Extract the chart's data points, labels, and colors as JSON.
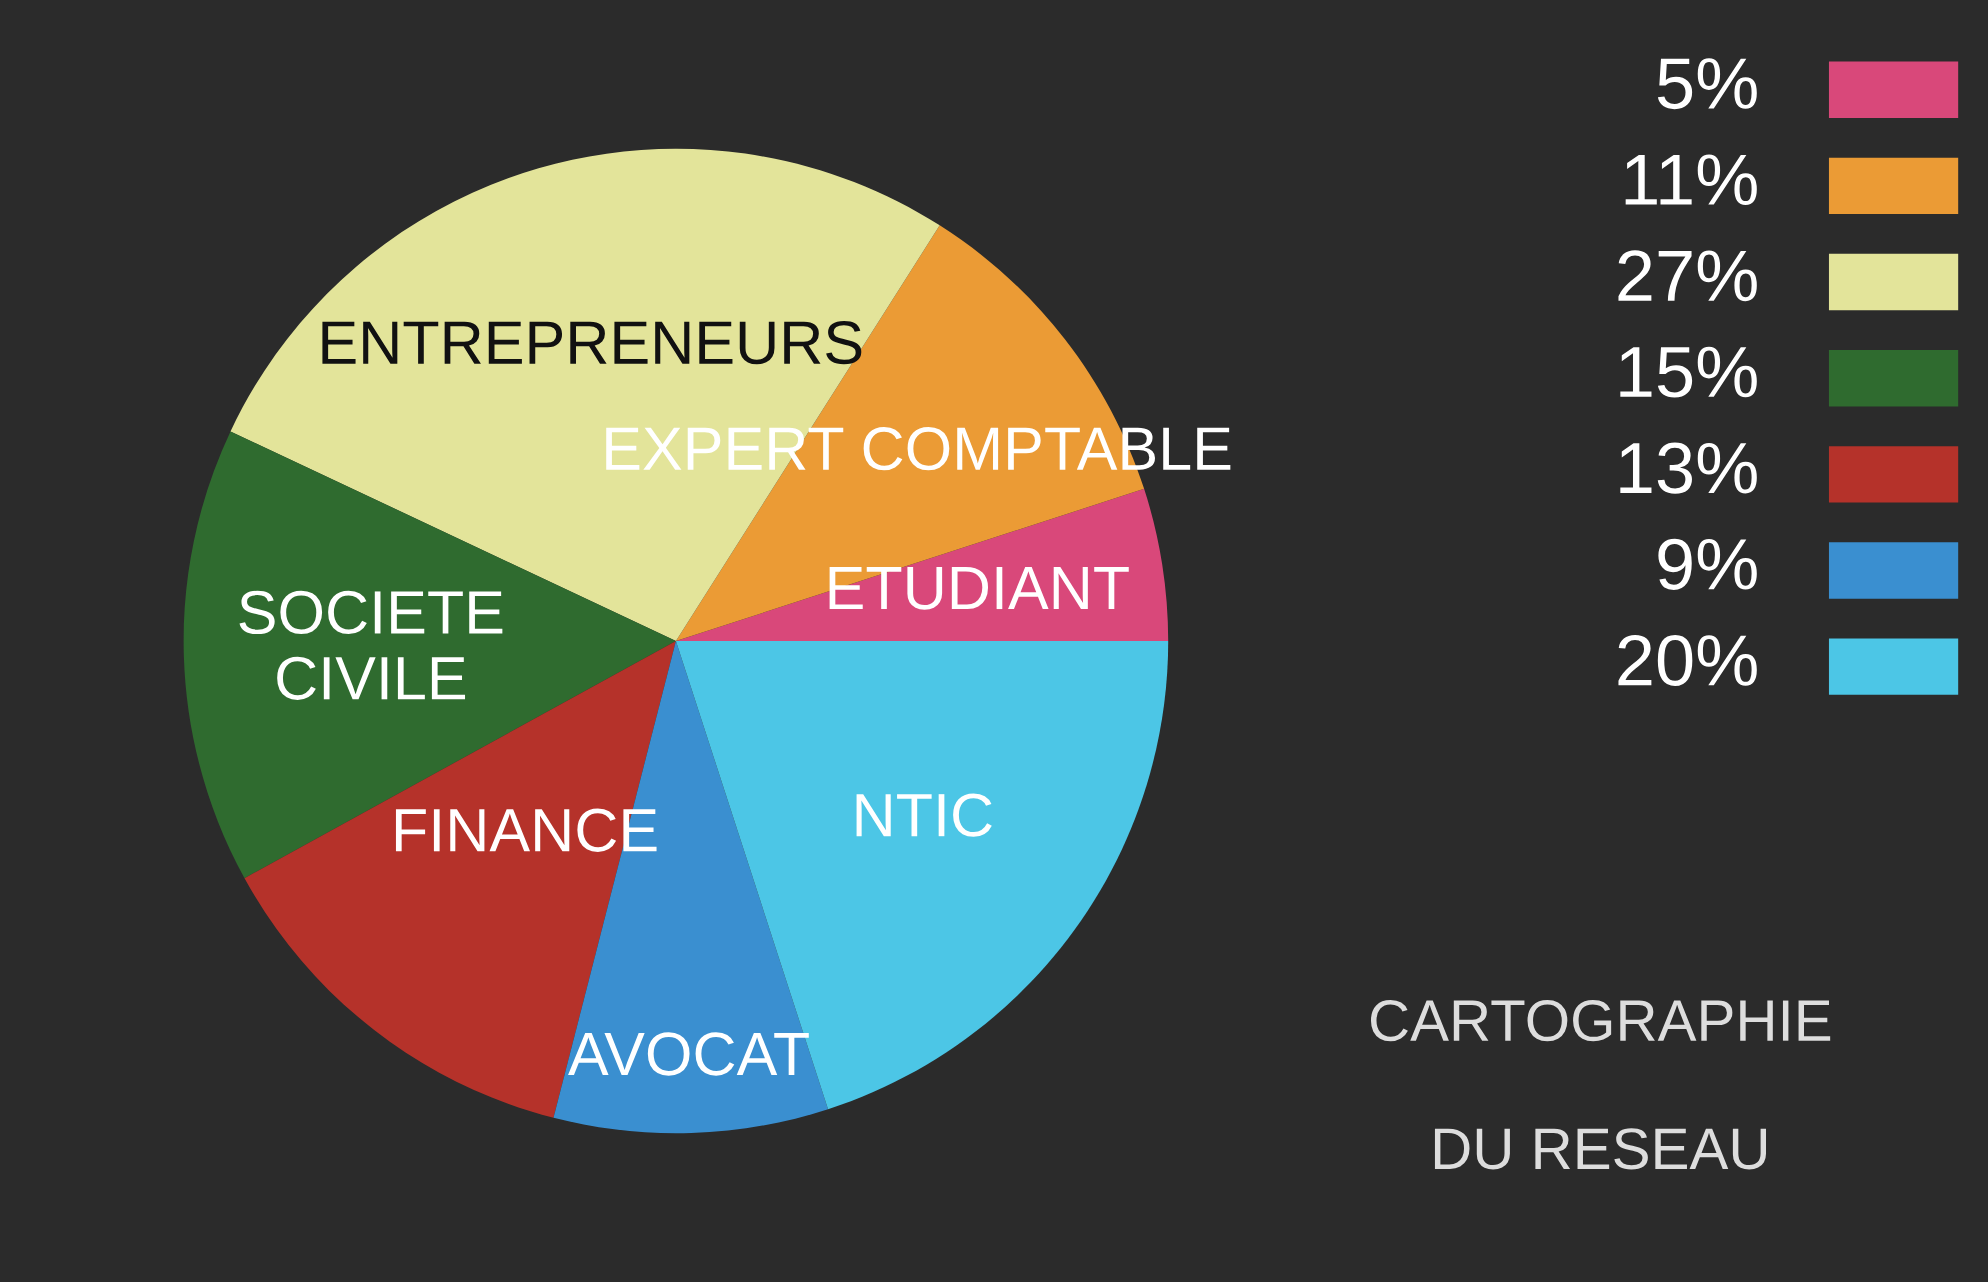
{
  "chart_data": {
    "type": "pie",
    "categories": [
      "ETUDIANT",
      "EXPERT COMPTABLE",
      "ENTREPRENEURS",
      "SOCIETE\nCIVILE",
      "FINANCE",
      "AVOCAT",
      "NTIC"
    ],
    "values": [
      5,
      11,
      27,
      15,
      13,
      9,
      20
    ],
    "colors": [
      "#d9487a",
      "#eb9b35",
      "#e3e49a",
      "#2f6b2f",
      "#b5322a",
      "#3a8fd0",
      "#4cc6e6"
    ],
    "annotations": [
      "5%",
      "11%",
      "27%",
      "15%",
      "13%",
      "9%",
      "20%",
      "CARTOGRAPHIE",
      "DU RESEAU"
    ]
  }
}
